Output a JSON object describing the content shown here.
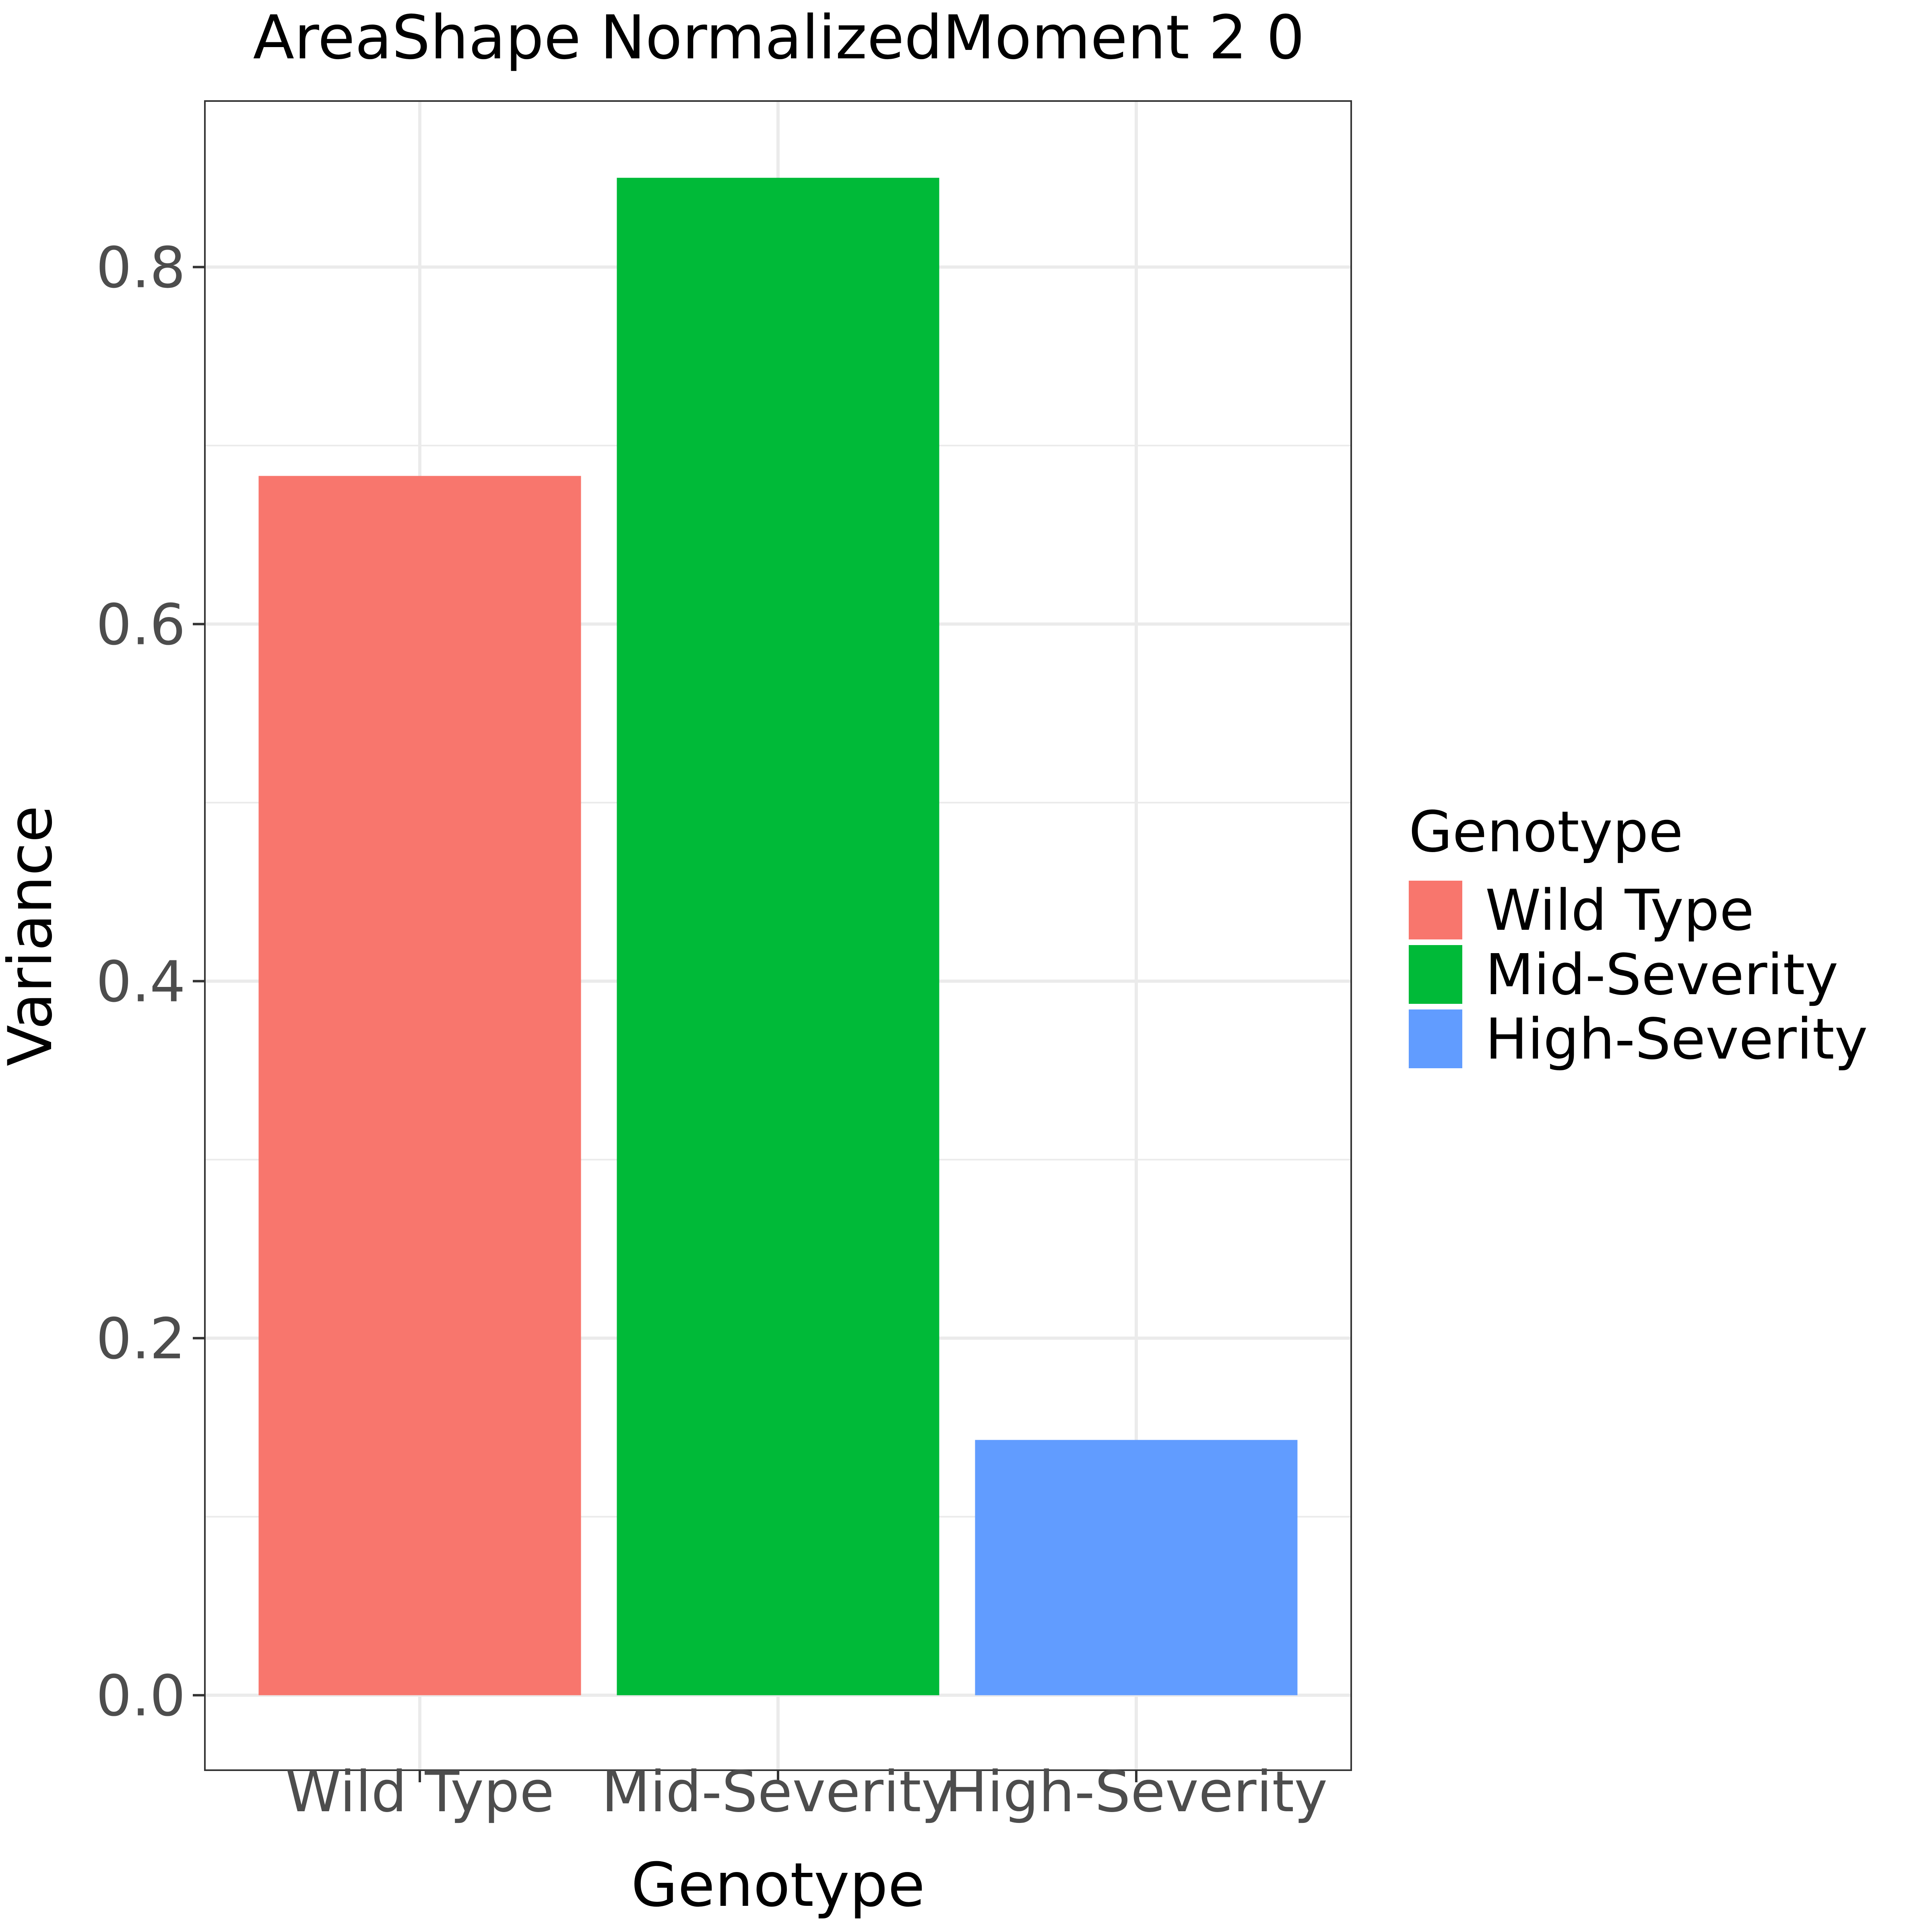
{
  "chart_data": {
    "type": "bar",
    "title": "AreaShape NormalizedMoment 2 0",
    "xlabel": "Genotype",
    "ylabel": "Variance",
    "categories": [
      "Wild Type",
      "Mid-Severity",
      "High-Severity"
    ],
    "values": [
      0.683,
      0.85,
      0.143
    ],
    "colors": [
      "#F8766D",
      "#00BA38",
      "#619CFF"
    ],
    "ylim": [
      -0.042,
      0.893
    ],
    "yticks": [
      0.0,
      0.2,
      0.4,
      0.6,
      0.8
    ],
    "ytick_labels": [
      "0.0",
      "0.2",
      "0.4",
      "0.6",
      "0.8"
    ],
    "grid": true,
    "legend": {
      "title": "Genotype",
      "entries": [
        "Wild Type",
        "Mid-Severity",
        "High-Severity"
      ],
      "placement": "right"
    }
  }
}
